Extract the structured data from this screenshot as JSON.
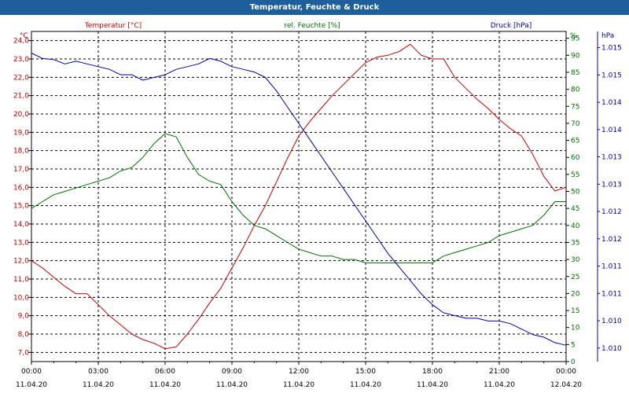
{
  "window": {
    "title": "Temperatur, Feuchte & Druck"
  },
  "colors": {
    "temperature": "#c00000",
    "humidity": "#007000",
    "pressure": "#0000b0",
    "grid": "#000000",
    "title_bg": "#1d5f9b"
  },
  "chart_data": {
    "type": "line",
    "title": "Temperatur, Feuchte & Druck",
    "grid": true,
    "x_ticks": [
      {
        "time": "00:00",
        "date": "11.04.20"
      },
      {
        "time": "03:00",
        "date": "11.04.20"
      },
      {
        "time": "06:00",
        "date": "11.04.20"
      },
      {
        "time": "09:00",
        "date": "11.04.20"
      },
      {
        "time": "12:00",
        "date": "11.04.20"
      },
      {
        "time": "15:00",
        "date": "11.04.20"
      },
      {
        "time": "18:00",
        "date": "11.04.20"
      },
      {
        "time": "21:00",
        "date": "11.04.20"
      },
      {
        "time": "00:00",
        "date": "12.04.20"
      }
    ],
    "x_range_hours": [
      0,
      24
    ],
    "axes": {
      "temperature": {
        "label": "Temperatur [°C]",
        "unit": "°C",
        "range": [
          6.5,
          24.5
        ],
        "ticks": [
          "24,0",
          "23,0",
          "22,0",
          "21,0",
          "20,0",
          "19,0",
          "18,0",
          "17,0",
          "16,0",
          "15,0",
          "14,0",
          "13,0",
          "12,0",
          "11,0",
          "10,0",
          "9,0",
          "8,0",
          "7,0"
        ]
      },
      "humidity": {
        "label": "rel. Feuchte [%]",
        "unit": "%",
        "range": [
          0,
          97
        ],
        "ticks": [
          "95",
          "90",
          "85",
          "80",
          "75",
          "70",
          "65",
          "60",
          "55",
          "50",
          "45",
          "40",
          "35",
          "30",
          "25",
          "20",
          "15",
          "10",
          "5",
          "0"
        ]
      },
      "pressure": {
        "label": "Druck [hPa]",
        "unit": "hPa",
        "range": [
          1009.7,
          1015.8
        ],
        "ticks": [
          "1.015",
          "1.015",
          "1.014",
          "1.014",
          "1.013",
          "1.013",
          "1.012",
          "1.012",
          "1.011",
          "1.011",
          "1.010",
          "1.010"
        ]
      }
    },
    "series": [
      {
        "name": "Temperatur [°C]",
        "axis": "temperature",
        "x": [
          0,
          0.5,
          1,
          1.5,
          2,
          2.5,
          3,
          3.5,
          4,
          4.5,
          5,
          5.5,
          6,
          6.5,
          7,
          7.5,
          8,
          8.5,
          9,
          9.5,
          10,
          10.5,
          11,
          11.5,
          12,
          12.5,
          13,
          13.5,
          14,
          14.5,
          15,
          15.5,
          16,
          16.5,
          17,
          17.5,
          18,
          18.5,
          19,
          19.5,
          20,
          20.5,
          21,
          21.5,
          22,
          22.5,
          23,
          23.5,
          24
        ],
        "values": [
          12.0,
          11.6,
          11.1,
          10.6,
          10.2,
          10.2,
          9.6,
          9.0,
          8.5,
          8.0,
          7.7,
          7.5,
          7.2,
          7.3,
          8.0,
          8.8,
          9.7,
          10.5,
          11.6,
          12.7,
          13.9,
          15.0,
          16.3,
          17.6,
          18.8,
          19.6,
          20.3,
          21.0,
          21.6,
          22.2,
          22.8,
          23.1,
          23.2,
          23.4,
          23.8,
          23.2,
          23.0,
          23.0,
          22.0,
          21.4,
          20.8,
          20.3,
          19.7,
          19.2,
          18.8,
          17.8,
          16.6,
          15.8,
          16.0
        ]
      },
      {
        "name": "rel. Feuchte [%]",
        "axis": "humidity",
        "x": [
          0,
          0.5,
          1,
          1.5,
          2,
          2.5,
          3,
          3.5,
          4,
          4.5,
          5,
          5.5,
          6,
          6.5,
          7,
          7.5,
          8,
          8.5,
          9,
          9.5,
          10,
          10.5,
          11,
          11.5,
          12,
          12.5,
          13,
          13.5,
          14,
          14.5,
          15,
          15.5,
          16,
          16.5,
          17,
          17.5,
          18,
          18.5,
          19,
          19.5,
          20,
          20.5,
          21,
          21.5,
          22,
          22.5,
          23,
          23.5,
          24
        ],
        "values": [
          45,
          47,
          49,
          50,
          51,
          52,
          53,
          54,
          56,
          57,
          60,
          64,
          67,
          66,
          60,
          55,
          53,
          52,
          47,
          43,
          40,
          39,
          37,
          35,
          33,
          32,
          31,
          31,
          30,
          30,
          29,
          29,
          29,
          29,
          29,
          29,
          29,
          31,
          32,
          33,
          34,
          35,
          37,
          38,
          39,
          40,
          43,
          47,
          47
        ]
      },
      {
        "name": "Druck [hPa]",
        "axis": "pressure",
        "x": [
          0,
          0.5,
          1,
          1.5,
          2,
          2.5,
          3,
          3.5,
          4,
          4.5,
          5,
          5.5,
          6,
          6.5,
          7,
          7.5,
          8,
          8.5,
          9,
          9.5,
          10,
          10.5,
          11,
          11.5,
          12,
          12.5,
          13,
          13.5,
          14,
          14.5,
          15,
          15.5,
          16,
          16.5,
          17,
          17.5,
          18,
          18.5,
          19,
          19.5,
          20,
          20.5,
          21,
          21.5,
          22,
          22.5,
          23,
          23.5,
          24
        ],
        "values": [
          1015.4,
          1015.3,
          1015.28,
          1015.2,
          1015.25,
          1015.2,
          1015.15,
          1015.1,
          1015.0,
          1015.0,
          1014.9,
          1014.95,
          1015.0,
          1015.1,
          1015.15,
          1015.2,
          1015.3,
          1015.25,
          1015.15,
          1015.1,
          1015.05,
          1014.95,
          1014.7,
          1014.4,
          1014.1,
          1013.8,
          1013.5,
          1013.2,
          1012.9,
          1012.6,
          1012.3,
          1012.0,
          1011.7,
          1011.45,
          1011.2,
          1010.95,
          1010.75,
          1010.6,
          1010.55,
          1010.5,
          1010.5,
          1010.45,
          1010.45,
          1010.4,
          1010.3,
          1010.2,
          1010.15,
          1010.05,
          1010.0
        ]
      }
    ]
  }
}
